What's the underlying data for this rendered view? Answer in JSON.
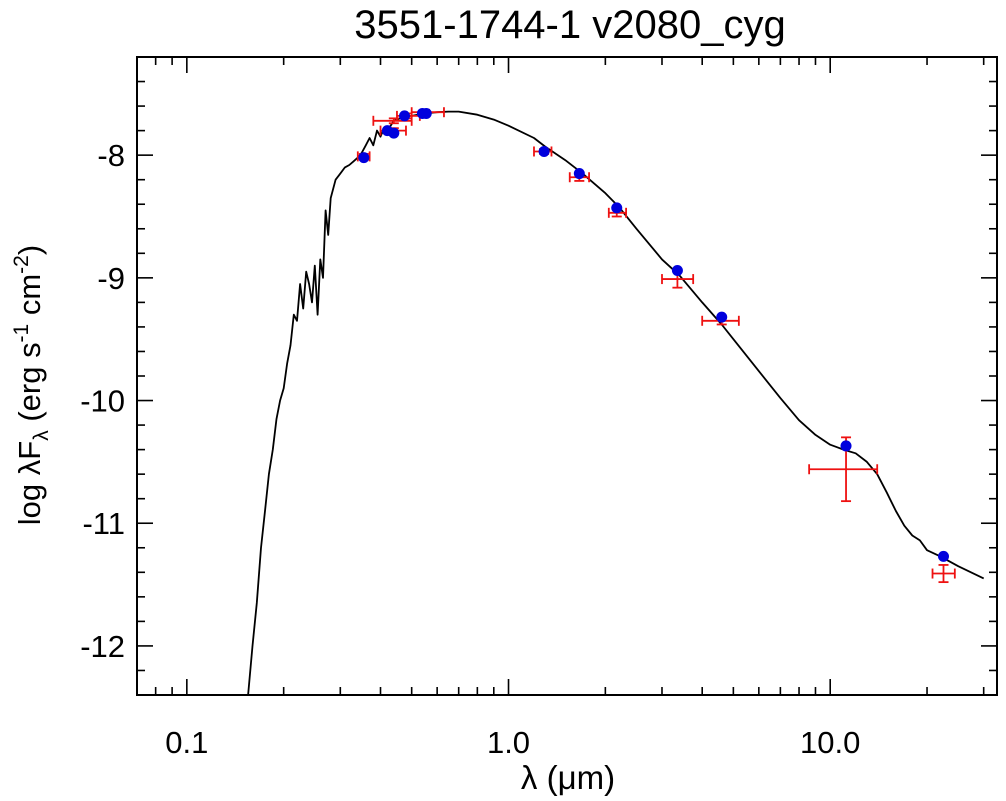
{
  "chart_data": {
    "type": "scatter",
    "title": "3551-1744-1   v2080_cyg",
    "xlabel_parts": [
      "λ (",
      "μ",
      "m)"
    ],
    "ylabel_parts": {
      "prefix": "log λF",
      "sub": "λ",
      "units_open": " (erg s",
      "sup1": "-1",
      "units_mid": " cm",
      "sup2": "-2",
      "units_close": ")"
    },
    "x_scale": "log",
    "xlim": [
      0.07,
      33
    ],
    "ylim": [
      -12.4,
      -7.2
    ],
    "x_tick_labels": [
      {
        "value": 0.1,
        "label": "0.1"
      },
      {
        "value": 1.0,
        "label": "1.0"
      },
      {
        "value": 10.0,
        "label": "10.0"
      }
    ],
    "y_tick_labels": [
      {
        "value": -8,
        "label": "-8"
      },
      {
        "value": -9,
        "label": "-9"
      },
      {
        "value": -10,
        "label": "-10"
      },
      {
        "value": -11,
        "label": "-11"
      },
      {
        "value": -12,
        "label": "-12"
      }
    ],
    "grid": false,
    "model_color": "#000000",
    "model_points": [
      [
        0.155,
        -12.4
      ],
      [
        0.16,
        -12.0
      ],
      [
        0.165,
        -11.65
      ],
      [
        0.17,
        -11.2
      ],
      [
        0.175,
        -10.9
      ],
      [
        0.18,
        -10.6
      ],
      [
        0.185,
        -10.4
      ],
      [
        0.19,
        -10.15
      ],
      [
        0.195,
        -10.0
      ],
      [
        0.2,
        -9.9
      ],
      [
        0.205,
        -9.7
      ],
      [
        0.21,
        -9.55
      ],
      [
        0.215,
        -9.3
      ],
      [
        0.22,
        -9.35
      ],
      [
        0.225,
        -9.05
      ],
      [
        0.23,
        -9.25
      ],
      [
        0.235,
        -8.95
      ],
      [
        0.24,
        -9.05
      ],
      [
        0.245,
        -9.2
      ],
      [
        0.25,
        -8.9
      ],
      [
        0.255,
        -9.3
      ],
      [
        0.26,
        -8.85
      ],
      [
        0.265,
        -9.0
      ],
      [
        0.27,
        -8.45
      ],
      [
        0.275,
        -8.65
      ],
      [
        0.28,
        -8.35
      ],
      [
        0.29,
        -8.2
      ],
      [
        0.3,
        -8.15
      ],
      [
        0.31,
        -8.1
      ],
      [
        0.32,
        -8.08
      ],
      [
        0.33,
        -8.05
      ],
      [
        0.34,
        -8.02
      ],
      [
        0.35,
        -7.98
      ],
      [
        0.36,
        -7.92
      ],
      [
        0.37,
        -7.86
      ],
      [
        0.38,
        -7.92
      ],
      [
        0.39,
        -7.8
      ],
      [
        0.4,
        -7.85
      ],
      [
        0.41,
        -7.78
      ],
      [
        0.42,
        -7.82
      ],
      [
        0.43,
        -7.76
      ],
      [
        0.44,
        -7.72
      ],
      [
        0.46,
        -7.7
      ],
      [
        0.48,
        -7.68
      ],
      [
        0.5,
        -7.68
      ],
      [
        0.55,
        -7.66
      ],
      [
        0.6,
        -7.65
      ],
      [
        0.65,
        -7.645
      ],
      [
        0.7,
        -7.645
      ],
      [
        0.8,
        -7.67
      ],
      [
        0.9,
        -7.71
      ],
      [
        1.0,
        -7.76
      ],
      [
        1.2,
        -7.86
      ],
      [
        1.3,
        -7.93
      ],
      [
        1.5,
        -8.04
      ],
      [
        1.7,
        -8.15
      ],
      [
        2.0,
        -8.31
      ],
      [
        2.2,
        -8.42
      ],
      [
        2.5,
        -8.6
      ],
      [
        3.0,
        -8.85
      ],
      [
        3.4,
        -8.98
      ],
      [
        4.0,
        -9.2
      ],
      [
        4.6,
        -9.38
      ],
      [
        5.0,
        -9.5
      ],
      [
        6.0,
        -9.76
      ],
      [
        7.0,
        -9.98
      ],
      [
        8.0,
        -10.16
      ],
      [
        9.0,
        -10.28
      ],
      [
        10.0,
        -10.36
      ],
      [
        10.5,
        -10.38
      ],
      [
        11.0,
        -10.4
      ],
      [
        12.0,
        -10.43
      ],
      [
        13.0,
        -10.5
      ],
      [
        14.0,
        -10.6
      ],
      [
        15.0,
        -10.75
      ],
      [
        16.0,
        -10.9
      ],
      [
        17.0,
        -11.02
      ],
      [
        18.0,
        -11.1
      ],
      [
        19.0,
        -11.14
      ],
      [
        20.0,
        -11.22
      ],
      [
        22.0,
        -11.27
      ],
      [
        25.0,
        -11.35
      ],
      [
        30.0,
        -11.45
      ]
    ],
    "model_points_observed": [
      {
        "x": 0.355,
        "y": -8.02,
        "color": "#0000dd"
      },
      {
        "x": 0.42,
        "y": -7.8,
        "color": "#0000dd"
      },
      {
        "x": 0.44,
        "y": -7.82,
        "color": "#0000dd"
      },
      {
        "x": 0.475,
        "y": -7.68,
        "color": "#0000dd"
      },
      {
        "x": 0.54,
        "y": -7.66,
        "color": "#0000dd"
      },
      {
        "x": 0.555,
        "y": -7.66,
        "color": "#0000dd"
      },
      {
        "x": 1.29,
        "y": -7.97,
        "color": "#0000dd"
      },
      {
        "x": 1.66,
        "y": -8.15,
        "color": "#0000dd"
      },
      {
        "x": 2.17,
        "y": -8.43,
        "color": "#0000dd"
      },
      {
        "x": 3.35,
        "y": -8.94,
        "color": "#0000dd"
      },
      {
        "x": 4.6,
        "y": -9.32,
        "color": "#0000dd"
      },
      {
        "x": 11.2,
        "y": -10.37,
        "color": "#0000dd"
      },
      {
        "x": 22.5,
        "y": -11.27,
        "color": "#0000dd"
      }
    ],
    "observed_points": [
      {
        "x": 0.355,
        "y": -8.01,
        "xerr": [
          0.34,
          0.37
        ],
        "yerr": 0.02
      },
      {
        "x": 0.44,
        "y": -7.72,
        "xerr": [
          0.38,
          0.5
        ],
        "yerr": 0.02
      },
      {
        "x": 0.44,
        "y": -7.8,
        "xerr": [
          0.4,
          0.48
        ],
        "yerr": 0.02
      },
      {
        "x": 0.48,
        "y": -7.68,
        "xerr": [
          0.45,
          0.53
        ],
        "yerr": 0.02
      },
      {
        "x": 0.55,
        "y": -7.65,
        "xerr": [
          0.5,
          0.63
        ],
        "yerr": 0.02
      },
      {
        "x": 1.29,
        "y": -7.97,
        "xerr": [
          1.2,
          1.36
        ],
        "yerr": 0.02
      },
      {
        "x": 1.66,
        "y": -8.18,
        "xerr": [
          1.55,
          1.78
        ],
        "yerr": 0.03
      },
      {
        "x": 2.17,
        "y": -8.47,
        "xerr": [
          2.05,
          2.32
        ],
        "yerr": 0.03
      },
      {
        "x": 3.35,
        "y": -9.01,
        "xerr": [
          3.0,
          3.75
        ],
        "yerr": 0.07
      },
      {
        "x": 4.6,
        "y": -9.35,
        "xerr": [
          4.0,
          5.2
        ],
        "yerr": 0.03
      },
      {
        "x": 11.2,
        "y": -10.56,
        "xerr": [
          8.6,
          14.0
        ],
        "yerr": 0.26
      },
      {
        "x": 22.5,
        "y": -11.41,
        "xerr": [
          20.8,
          24.4
        ],
        "yerr": 0.07
      }
    ],
    "observed_color": "#ee1111"
  }
}
